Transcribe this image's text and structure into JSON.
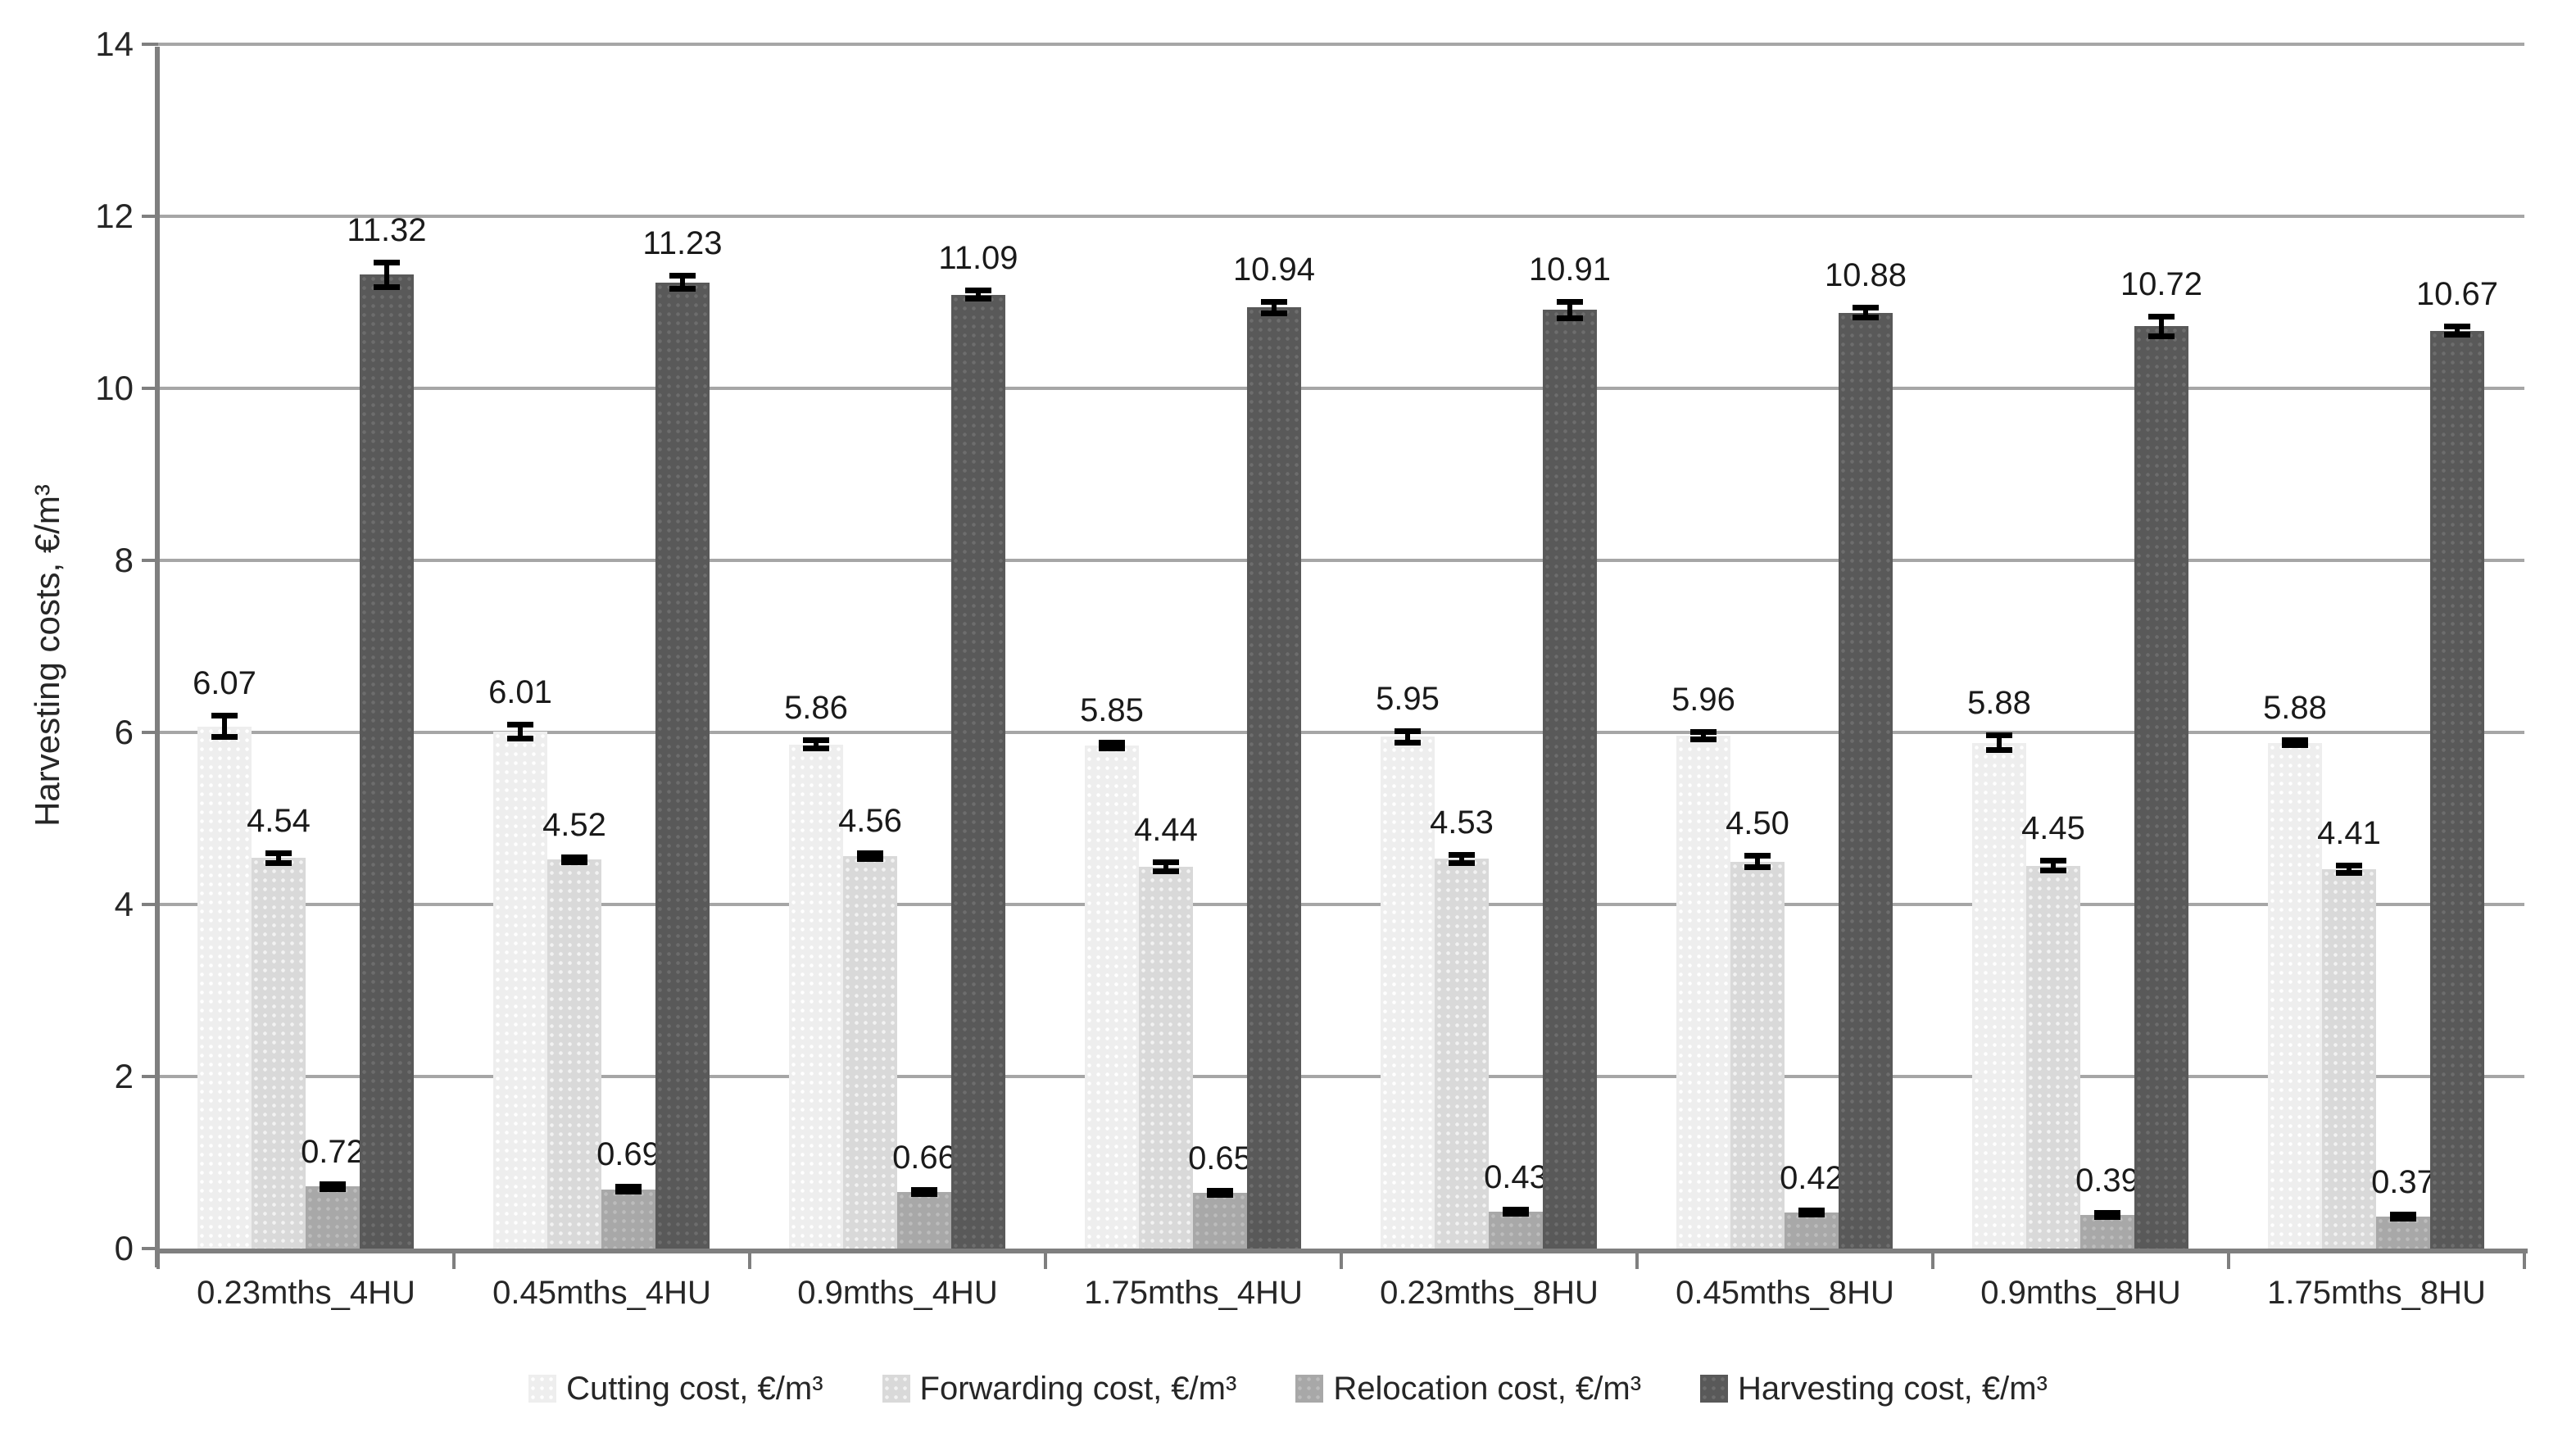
{
  "chart_data": {
    "type": "bar",
    "title": "",
    "xlabel": "",
    "ylabel": "Harvesting costs, €/m³",
    "ylim": [
      0,
      14
    ],
    "yticks": [
      0,
      2,
      4,
      6,
      8,
      10,
      12,
      14
    ],
    "grid": true,
    "legend_position": "bottom",
    "categories": [
      "0.23mths_4HU",
      "0.45mths_4HU",
      "0.9mths_4HU",
      "1.75mths_4HU",
      "0.23mths_8HU",
      "0.45mths_8HU",
      "0.9mths_8HU",
      "1.75mths_8HU"
    ],
    "series": [
      {
        "name": "Cutting cost, €/m³",
        "color": "#eeeeee",
        "values": [
          6.07,
          6.01,
          5.86,
          5.85,
          5.95,
          5.96,
          5.88,
          5.88
        ],
        "errors": [
          0.13,
          0.09,
          0.05,
          0.04,
          0.07,
          0.05,
          0.09,
          0.03
        ]
      },
      {
        "name": "Forwarding cost, €/m³",
        "color": "#d9d9d9",
        "values": [
          4.54,
          4.52,
          4.56,
          4.44,
          4.53,
          4.5,
          4.45,
          4.41
        ],
        "errors": [
          0.06,
          0.03,
          0.04,
          0.06,
          0.05,
          0.07,
          0.06,
          0.05
        ]
      },
      {
        "name": "Relocation cost, €/m³",
        "color": "#a8a8a8",
        "values": [
          0.72,
          0.69,
          0.66,
          0.65,
          0.43,
          0.42,
          0.39,
          0.37
        ],
        "errors": [
          0.03,
          0.03,
          0.03,
          0.03,
          0.03,
          0.03,
          0.03,
          0.03
        ]
      },
      {
        "name": "Harvesting cost, €/m³",
        "color": "#595959",
        "values": [
          11.32,
          11.23,
          11.09,
          10.94,
          10.91,
          10.88,
          10.72,
          10.67
        ],
        "errors": [
          0.15,
          0.08,
          0.05,
          0.07,
          0.1,
          0.06,
          0.12,
          0.05
        ]
      }
    ]
  }
}
